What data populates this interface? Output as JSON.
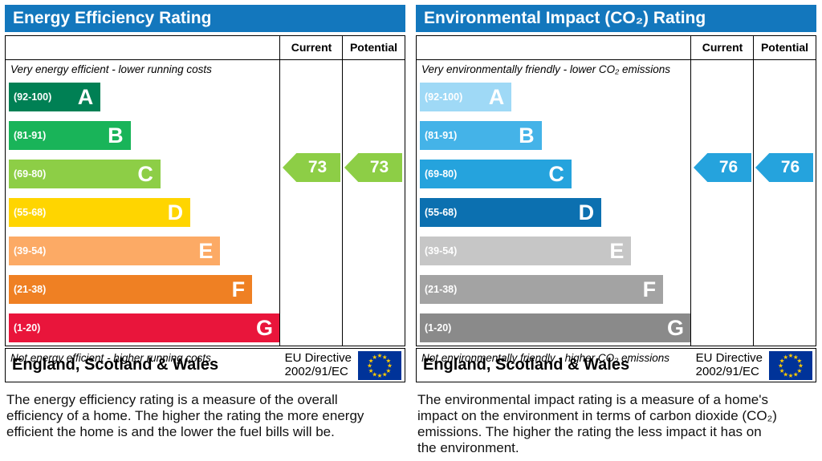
{
  "chart_data": [
    {
      "type": "bar",
      "title": "Energy Efficiency Rating",
      "categories": [
        "A (92-100)",
        "B (81-91)",
        "C (69-80)",
        "D (55-68)",
        "E (39-54)",
        "F (21-38)",
        "G (1-20)"
      ],
      "series": [
        {
          "name": "Current",
          "values": [
            73
          ]
        },
        {
          "name": "Potential",
          "values": [
            73
          ]
        }
      ],
      "current": 73,
      "potential": 73,
      "current_band": "C",
      "potential_band": "C",
      "scale": [
        1,
        100
      ],
      "xlabel": "",
      "ylabel": "",
      "legend_position": "top-right-columns",
      "grid": false
    },
    {
      "type": "bar",
      "title": "Environmental Impact (CO₂) Rating",
      "categories": [
        "A (92-100)",
        "B (81-91)",
        "C (69-80)",
        "D (55-68)",
        "E (39-54)",
        "F (21-38)",
        "G (1-20)"
      ],
      "series": [
        {
          "name": "Current",
          "values": [
            76
          ]
        },
        {
          "name": "Potential",
          "values": [
            76
          ]
        }
      ],
      "current": 76,
      "potential": 76,
      "current_band": "C",
      "potential_band": "C",
      "scale": [
        1,
        100
      ],
      "xlabel": "",
      "ylabel": "",
      "legend_position": "top-right-columns",
      "grid": false
    }
  ],
  "panels": [
    {
      "title": "Energy Efficiency Rating",
      "columns": {
        "current": "Current",
        "potential": "Potential"
      },
      "top_caption": "Very energy efficient - lower running costs",
      "bottom_caption": "Not energy efficient - higher running costs",
      "bands": [
        {
          "range": "(92-100)",
          "letter": "A",
          "color": "#008054",
          "width": "23%"
        },
        {
          "range": "(81-91)",
          "letter": "B",
          "color": "#19b459",
          "width": "30.5%"
        },
        {
          "range": "(69-80)",
          "letter": "C",
          "color": "#8dce46",
          "width": "38%"
        },
        {
          "range": "(55-68)",
          "letter": "D",
          "color": "#ffd500",
          "width": "45.5%"
        },
        {
          "range": "(39-54)",
          "letter": "E",
          "color": "#fcaa65",
          "width": "53%"
        },
        {
          "range": "(21-38)",
          "letter": "F",
          "color": "#ef8023",
          "width": "61%"
        },
        {
          "range": "(1-20)",
          "letter": "G",
          "color": "#e9153b",
          "width": "68%"
        }
      ],
      "current": {
        "value": "73",
        "color": "#8dce46",
        "band_index": 2
      },
      "potential": {
        "value": "73",
        "color": "#8dce46",
        "band_index": 2
      },
      "footer": {
        "region": "England, Scotland & Wales",
        "directive_line1": "EU Directive",
        "directive_line2": "2002/91/EC"
      },
      "description": "The energy efficiency rating is a measure of the overall efficiency of a home. The higher the rating the more energy efficient the home is and the lower the fuel bills will be."
    },
    {
      "title": "Environmental Impact (CO₂) Rating",
      "columns": {
        "current": "Current",
        "potential": "Potential"
      },
      "top_caption": "Very environmentally friendly - lower CO₂ emissions",
      "bottom_caption": "Not environmentally friendly - higher CO₂ emissions",
      "bands": [
        {
          "range": "(92-100)",
          "letter": "A",
          "color": "#9fd9f6",
          "width": "23%"
        },
        {
          "range": "(81-91)",
          "letter": "B",
          "color": "#44b3e8",
          "width": "30.5%"
        },
        {
          "range": "(69-80)",
          "letter": "C",
          "color": "#25a3dd",
          "width": "38%"
        },
        {
          "range": "(55-68)",
          "letter": "D",
          "color": "#0c70b0",
          "width": "45.5%"
        },
        {
          "range": "(39-54)",
          "letter": "E",
          "color": "#c6c6c6",
          "width": "53%"
        },
        {
          "range": "(21-38)",
          "letter": "F",
          "color": "#a3a3a3",
          "width": "61%"
        },
        {
          "range": "(1-20)",
          "letter": "G",
          "color": "#8a8a8a",
          "width": "68%"
        }
      ],
      "current": {
        "value": "76",
        "color": "#25a3dd",
        "band_index": 2
      },
      "potential": {
        "value": "76",
        "color": "#25a3dd",
        "band_index": 2
      },
      "footer": {
        "region": "England, Scotland & Wales",
        "directive_line1": "EU Directive",
        "directive_line2": "2002/91/EC"
      },
      "description": "The environmental impact rating is a measure of a home's impact on the environment in terms of carbon dioxide (CO₂) emissions. The higher the rating the less impact it has on the environment."
    }
  ],
  "flag": {
    "background": "#003399",
    "star_color": "#ffcc00"
  },
  "colors": {
    "header_bar": "#1377bd"
  }
}
